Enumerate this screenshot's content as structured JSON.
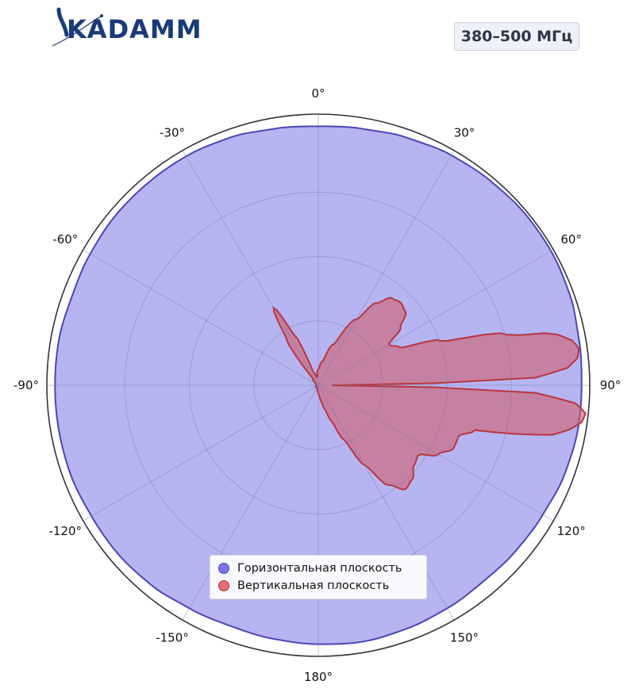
{
  "brand": {
    "logo_text": "KADAMM"
  },
  "badge": {
    "text": "380–500 МГц"
  },
  "chart_data": {
    "type": "polar-area",
    "title": "",
    "angular_axis": {
      "direction": "clockwise",
      "zero_at": "top",
      "tick_labels": [
        "0°",
        "30°",
        "60°",
        "90°",
        "120°",
        "150°",
        "180°",
        "-150°",
        "-120°",
        "-90°",
        "-60°",
        "-30°"
      ],
      "tick_angles": [
        0,
        30,
        60,
        90,
        120,
        150,
        180,
        210,
        240,
        270,
        300,
        330
      ]
    },
    "radial_axis": {
      "range": [
        0,
        1
      ],
      "rings": [
        0.25,
        0.5,
        0.75,
        1.0
      ],
      "tick_labels_shown": false
    },
    "grid": true,
    "legend": {
      "placement": "bottom-center"
    },
    "series": [
      {
        "name": "Горизонтальная плоскость",
        "color": "#7a78e8",
        "edge_color": "#4b45b8",
        "angles_deg": [
          0,
          10,
          20,
          30,
          40,
          50,
          60,
          70,
          80,
          90,
          100,
          110,
          120,
          130,
          140,
          150,
          160,
          170,
          180,
          190,
          200,
          210,
          220,
          230,
          240,
          250,
          260,
          270,
          280,
          290,
          300,
          310,
          320,
          330,
          340,
          350
        ],
        "values": [
          0.955,
          0.96,
          0.97,
          0.98,
          0.985,
          0.99,
          0.99,
          0.985,
          0.975,
          0.97,
          0.97,
          0.965,
          0.955,
          0.95,
          0.945,
          0.95,
          0.955,
          0.96,
          0.955,
          0.95,
          0.945,
          0.95,
          0.96,
          0.965,
          0.965,
          0.97,
          0.97,
          0.97,
          0.97,
          0.965,
          0.97,
          0.975,
          0.975,
          0.975,
          0.97,
          0.96
        ]
      },
      {
        "name": "Вертикальная плоскость",
        "color": "#d06070",
        "edge_color": "#b8353f",
        "angles_deg": [
          0,
          10,
          20,
          30,
          35,
          40,
          45,
          50,
          55,
          60,
          65,
          70,
          75,
          78,
          80,
          82,
          84,
          86,
          88,
          90,
          92,
          94,
          96,
          98,
          100,
          102,
          104,
          106,
          110,
          115,
          120,
          125,
          130,
          135,
          140,
          145,
          150,
          155,
          160,
          165,
          170,
          175,
          180,
          190,
          200,
          210,
          240,
          270,
          300,
          320,
          325,
          330,
          335,
          340,
          350
        ],
        "values": [
          0.06,
          0.09,
          0.16,
          0.28,
          0.37,
          0.42,
          0.43,
          0.42,
          0.37,
          0.3,
          0.33,
          0.48,
          0.72,
          0.9,
          0.95,
          0.97,
          0.96,
          0.92,
          0.8,
          0.05,
          0.8,
          0.95,
          0.99,
          0.98,
          0.94,
          0.88,
          0.74,
          0.6,
          0.55,
          0.55,
          0.51,
          0.45,
          0.46,
          0.49,
          0.5,
          0.45,
          0.34,
          0.22,
          0.14,
          0.09,
          0.06,
          0.04,
          0.03,
          0.02,
          0.01,
          0.01,
          0.01,
          0.01,
          0.01,
          0.03,
          0.2,
          0.33,
          0.2,
          0.05,
          0.03
        ]
      }
    ]
  }
}
